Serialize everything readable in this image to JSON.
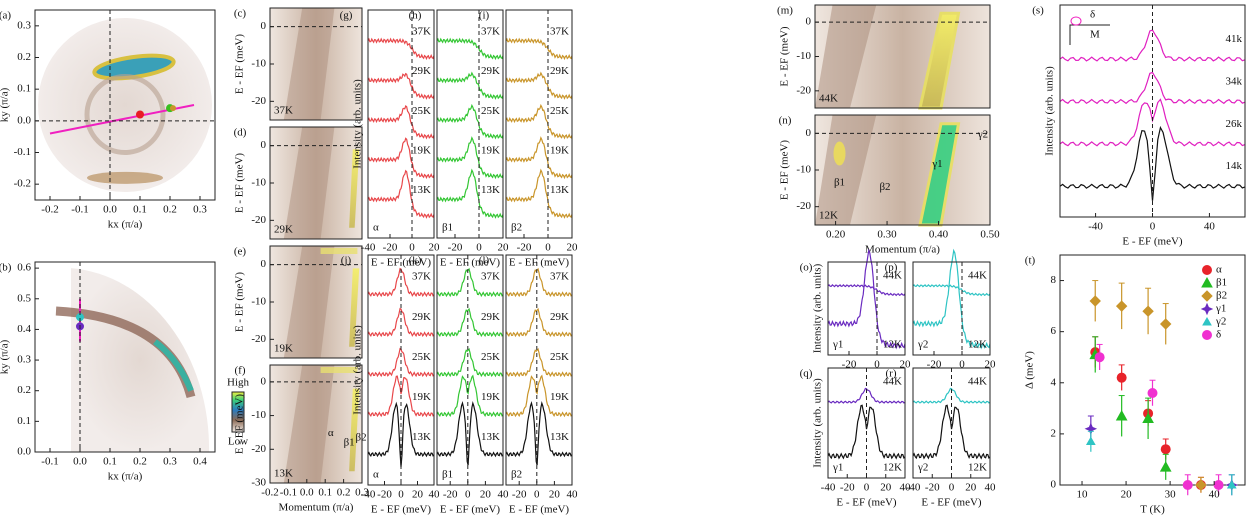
{
  "panels": [
    {
      "label": "(a)",
      "kind": "fs",
      "xlabel": "kx (π/a)",
      "ylabel": "ky (π/a)",
      "xlim": [
        -0.25,
        0.35
      ],
      "ylim": [
        -0.25,
        0.35
      ],
      "xticks": [
        -0.2,
        -0.1,
        {
          "value": 0,
          "label": "0.0"
        },
        0.1,
        0.2,
        0.3
      ],
      "yticks": [
        -0.2,
        -0.1,
        {
          "value": 0,
          "label": "0.0"
        },
        0.1,
        0.2,
        0.3
      ]
    },
    {
      "label": "(b)",
      "kind": "fs2",
      "xlabel": "kx (π/a)",
      "ylabel": "ky (π/a)",
      "xlim": [
        -0.15,
        0.45
      ],
      "ylim": [
        0,
        0.62
      ],
      "xticks": [
        -0.1,
        {
          "value": 0,
          "label": "0.0"
        },
        0.1,
        0.2,
        0.3,
        0.4
      ],
      "yticks": [
        {
          "value": 0,
          "label": "0.0"
        },
        0.1,
        0.2,
        0.3,
        0.4,
        0.5,
        0.6
      ],
      "colorbar": {
        "high": "High",
        "low": "Low"
      }
    },
    {
      "label": "(c)",
      "kind": "map",
      "ylabel": "E - EF (meV)",
      "xlim": [
        -0.2,
        0.3
      ],
      "ylim": [
        -25,
        5
      ],
      "yticks": [
        0,
        -10,
        -20
      ],
      "temps": [
        "37K"
      ]
    },
    {
      "label": "(d)",
      "kind": "map",
      "ylabel": "E - EF (meV)",
      "xlim": [
        -0.2,
        0.3
      ],
      "ylim": [
        -25,
        5
      ],
      "yticks": [
        0,
        -10,
        -20
      ],
      "temps": [
        "29K"
      ]
    },
    {
      "label": "(e)",
      "kind": "map",
      "ylabel": "E - EF (meV)",
      "xlim": [
        -0.2,
        0.3
      ],
      "ylim": [
        -25,
        5
      ],
      "yticks": [
        0,
        -10,
        -20
      ],
      "temps": [
        "19K"
      ]
    },
    {
      "label": "(f)",
      "kind": "map",
      "ylabel": "E - EF (meV)",
      "xlabel": "Momentum (π/a)",
      "xlim": [
        -0.2,
        0.3
      ],
      "ylim": [
        -30,
        5
      ],
      "yticks": [
        0,
        -10,
        -20,
        -30
      ],
      "xticks": [
        -0.2,
        -0.1,
        {
          "value": 0,
          "label": "0.0"
        },
        0.1,
        0.2,
        0.3
      ],
      "temps": [
        "13K"
      ],
      "notes": [
        "α",
        "β1",
        "β2"
      ]
    },
    {
      "label": "(g)",
      "kind": "edc",
      "color": "#e8474a",
      "ylabel": "Intensity (arb. units)",
      "xlabel": "E - EF (meV)",
      "xlim": [
        -40,
        20
      ],
      "xticks": [
        -40,
        -20,
        0,
        20
      ],
      "temps": [
        "37K",
        "29K",
        "25K",
        "19K",
        "13K"
      ],
      "notes": [
        "α"
      ]
    },
    {
      "label": "(h)",
      "kind": "edc",
      "color": "#33c633",
      "xlabel": "E - EF (meV)",
      "xlim": [
        -35,
        20
      ],
      "xticks": [
        -20,
        0,
        20
      ],
      "temps": [
        "37K",
        "29K",
        "25K",
        "19K",
        "13K"
      ],
      "notes": [
        "β1"
      ]
    },
    {
      "label": "(i)",
      "kind": "edc",
      "color": "#c9952a",
      "xlabel": "E - EF (meV)",
      "xlim": [
        -35,
        20
      ],
      "xticks": [
        -20,
        0,
        20
      ],
      "temps": [
        "37K",
        "29K",
        "25K",
        "19K",
        "13K"
      ],
      "notes": [
        "β2"
      ]
    },
    {
      "label": "(j)",
      "kind": "sym",
      "color": "#e8474a",
      "ylabel": "Intensity (arb. units)",
      "xlabel": "E - EF (meV)",
      "xlim": [
        -40,
        40
      ],
      "xticks": [
        -40,
        -20,
        0,
        20,
        40
      ],
      "temps": [
        "37K",
        "29K",
        "25K",
        "19K",
        "13K"
      ],
      "notes": [
        "α"
      ]
    },
    {
      "label": "(k)",
      "kind": "sym",
      "color": "#33c633",
      "xlabel": "E - EF (meV)",
      "xlim": [
        -35,
        40
      ],
      "xticks": [
        -20,
        0,
        20,
        40
      ],
      "temps": [
        "37K",
        "29K",
        "25K",
        "19K",
        "13K"
      ],
      "notes": [
        "β1"
      ]
    },
    {
      "label": "(l)",
      "kind": "sym",
      "color": "#c9952a",
      "xlabel": "E - EF (meV)",
      "xlim": [
        -35,
        40
      ],
      "xticks": [
        -20,
        0,
        20,
        40
      ],
      "temps": [
        "37K",
        "29K",
        "25K",
        "19K",
        "13K"
      ],
      "notes": [
        "β2"
      ]
    },
    {
      "label": "(m)",
      "kind": "map2",
      "ylabel": "E - EF (meV)",
      "xlim": [
        0.16,
        0.5
      ],
      "ylim": [
        -25,
        5
      ],
      "yticks": [
        0,
        -10,
        -20
      ],
      "temps": [
        "44K"
      ]
    },
    {
      "label": "(n)",
      "kind": "map2",
      "ylabel": "E - EF (meV)",
      "xlabel": "Momentum (π/a)",
      "xlim": [
        0.16,
        0.5
      ],
      "ylim": [
        -25,
        5
      ],
      "yticks": [
        0,
        -10,
        -20
      ],
      "xticks": [
        {
          "value": 0.2,
          "label": "0.20"
        },
        {
          "value": 0.3,
          "label": "0.30"
        },
        {
          "value": 0.4,
          "label": "0.40"
        },
        {
          "value": 0.5,
          "label": "0.50"
        }
      ],
      "temps": [
        "12K"
      ],
      "notes": [
        "β1",
        "β2",
        "γ1",
        "γ2"
      ]
    },
    {
      "label": "(o)",
      "kind": "small",
      "color": "#6a2bc0",
      "ylabel": "Intensity (arb. units)",
      "xlim": [
        -35,
        20
      ],
      "xticks": [
        -20,
        0,
        20
      ],
      "temps": [
        "44K",
        "12K"
      ],
      "notes": [
        "γ1"
      ]
    },
    {
      "label": "(p)",
      "kind": "small",
      "color": "#2ec4c4",
      "xlim": [
        -35,
        20
      ],
      "xticks": [
        -20,
        0,
        20
      ],
      "temps": [
        "44K",
        "12K"
      ],
      "notes": [
        "γ2"
      ]
    },
    {
      "label": "(q)",
      "kind": "smallsym",
      "color": "#6a2bc0",
      "ylabel": "Intensity (arb. units)",
      "xlabel": "E - EF (meV)",
      "xlim": [
        -40,
        40
      ],
      "xticks": [
        -40,
        -20,
        0,
        20,
        40
      ],
      "temps": [
        "44K",
        "12K"
      ],
      "notes": [
        "γ1"
      ]
    },
    {
      "label": "(r)",
      "kind": "smallsym",
      "color": "#2ec4c4",
      "xlabel": "E - EF (meV)",
      "xlim": [
        -40,
        40
      ],
      "xticks": [
        -40,
        -20,
        0,
        20,
        40
      ],
      "temps": [
        "44K",
        "12K"
      ],
      "notes": [
        "γ2"
      ]
    },
    {
      "label": "(s)",
      "kind": "sym",
      "color": "#e020c0",
      "ylabel": "Intensity (arb. units)",
      "xlabel": "E - EF (meV)",
      "xlim": [
        -65,
        65
      ],
      "xticks": [
        -40,
        0,
        40
      ],
      "temps": [
        "41k",
        "34k",
        "26k",
        "14k"
      ],
      "notes": [
        "δ",
        "M"
      ]
    }
  ],
  "chart_data": {
    "type": "scatter",
    "label": "(t)",
    "xlabel": "T (K)",
    "ylabel": "Δ (meV)",
    "xlim": [
      5,
      47
    ],
    "ylim": [
      0,
      9
    ],
    "xticks": [
      10,
      20,
      30,
      40
    ],
    "yticks": [
      0,
      2,
      4,
      6,
      8
    ],
    "series": [
      {
        "name": "α",
        "color": "#e8232a",
        "marker": "circle",
        "x": [
          13,
          19,
          25,
          29,
          37
        ],
        "values": [
          5.2,
          4.2,
          2.8,
          1.4,
          0
        ],
        "errors": [
          0.6,
          0.5,
          0.5,
          0.4,
          0.3
        ]
      },
      {
        "name": "β1",
        "color": "#22bb22",
        "marker": "triangle",
        "x": [
          13,
          19,
          25,
          29
        ],
        "values": [
          5.1,
          2.7,
          2.6,
          0.7
        ],
        "errors": [
          0.7,
          0.8,
          0.8,
          0.5
        ]
      },
      {
        "name": "β2",
        "color": "#c9952a",
        "marker": "diamond",
        "x": [
          13,
          19,
          25,
          29,
          37
        ],
        "values": [
          7.2,
          7.0,
          6.8,
          6.3,
          0
        ],
        "errors": [
          0.8,
          0.9,
          0.9,
          0.8,
          0.3
        ]
      },
      {
        "name": "γ1",
        "color": "#6a2bc0",
        "marker": "star",
        "x": [
          12,
          44
        ],
        "values": [
          2.2,
          0
        ],
        "errors": [
          0.5,
          0.4
        ]
      },
      {
        "name": "γ2",
        "color": "#2ec4c4",
        "marker": "tri-small",
        "x": [
          12,
          44
        ],
        "values": [
          1.7,
          0
        ],
        "errors": [
          0.4,
          0.4
        ]
      },
      {
        "name": "δ",
        "color": "#f030d0",
        "marker": "circle",
        "x": [
          14,
          26,
          34,
          41
        ],
        "values": [
          5.0,
          3.6,
          0,
          0
        ],
        "errors": [
          0.5,
          0.5,
          0.4,
          0.4
        ]
      }
    ],
    "legend": "upper right"
  }
}
